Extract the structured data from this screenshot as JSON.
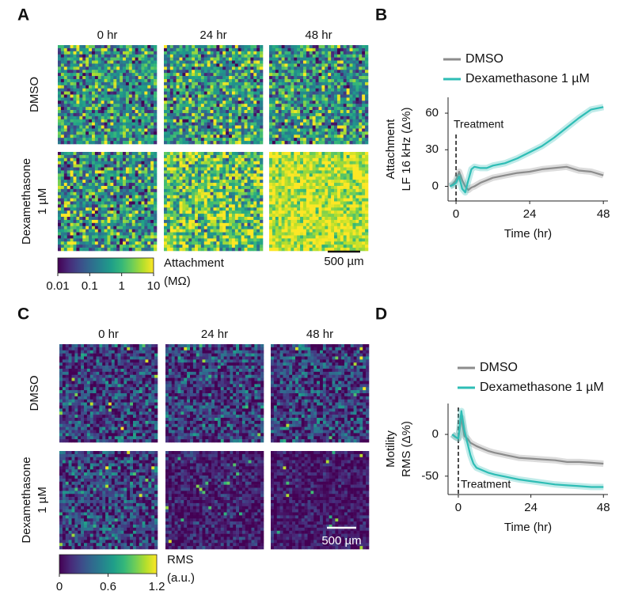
{
  "panel_labels": [
    "A",
    "B",
    "C",
    "D"
  ],
  "heatmaps": [
    {
      "column_titles": [
        "0 hr",
        "24 hr",
        "48 hr"
      ],
      "row_labels": [
        [
          "DMSO"
        ],
        [
          "Dexamethasone",
          "1 µM"
        ]
      ],
      "colorbar": {
        "label": [
          "Attachment",
          "(MΩ)"
        ],
        "scale": "log",
        "lim": [
          0.01,
          10
        ],
        "ticks": [
          0.01,
          0.1,
          1,
          10
        ]
      },
      "scale_bar": "500 µm"
    },
    {
      "column_titles": [
        "0 hr",
        "24 hr",
        "48 hr"
      ],
      "row_labels": [
        [
          "DMSO"
        ],
        [
          "Dexamethasone",
          "1 µM"
        ]
      ],
      "colorbar": {
        "label": [
          "RMS",
          "(a.u.)"
        ],
        "scale": "linear",
        "lim": [
          0,
          1.2
        ],
        "ticks": [
          0,
          0.6,
          1.2
        ]
      },
      "scale_bar": "500 µm"
    }
  ],
  "chart_data": [
    {
      "type": "line",
      "xlabel": "Time (hr)",
      "ylabel": [
        "Attachment",
        "LF 16 kHz (Δ%)"
      ],
      "annotation": "Treatment",
      "x": [
        -2,
        -1,
        0,
        1,
        2,
        3,
        4,
        5,
        6,
        8,
        10,
        12,
        16,
        20,
        24,
        28,
        32,
        36,
        40,
        44,
        48
      ],
      "series": [
        {
          "name": "DMSO",
          "color": "#8c8c8c",
          "values": [
            0,
            2,
            5,
            12,
            5,
            0,
            -3,
            -1,
            0,
            3,
            5,
            7,
            9,
            11,
            12,
            14,
            15,
            16,
            13,
            12,
            9
          ]
        },
        {
          "name": "Dexamethasone 1 µM",
          "color": "#2ebdb5",
          "values": [
            0,
            1,
            3,
            8,
            -2,
            -5,
            5,
            14,
            16,
            15,
            15,
            17,
            19,
            23,
            28,
            33,
            40,
            48,
            56,
            63,
            65
          ]
        }
      ],
      "xlim": [
        -2.6,
        49.5
      ],
      "xticks": [
        0,
        24,
        48
      ],
      "ylim": [
        -12,
        73
      ],
      "yticks": [
        0,
        30,
        60
      ]
    },
    {
      "type": "line",
      "xlabel": "Time (hr)",
      "ylabel": [
        "Motility",
        "RMS (Δ%)"
      ],
      "annotation": "Treatment",
      "x": [
        -2,
        -1,
        0,
        1,
        2,
        3,
        4,
        5,
        6,
        8,
        10,
        12,
        16,
        20,
        24,
        28,
        32,
        36,
        40,
        44,
        48
      ],
      "series": [
        {
          "name": "DMSO",
          "color": "#8c8c8c",
          "values": [
            0,
            -3,
            -5,
            20,
            -2,
            -5,
            -10,
            -12,
            -14,
            -17,
            -20,
            -22,
            -25,
            -28,
            -29,
            -30,
            -31,
            -33,
            -33,
            -34,
            -35
          ]
        },
        {
          "name": "Dexamethasone 1 µM",
          "color": "#2ebdb5",
          "values": [
            0,
            -3,
            -5,
            28,
            5,
            -10,
            -25,
            -35,
            -40,
            -43,
            -46,
            -48,
            -51,
            -54,
            -56,
            -58,
            -60,
            -61,
            -62,
            -63,
            -63
          ]
        }
      ],
      "xlim": [
        -3.4,
        49.5
      ],
      "xticks": [
        0,
        24,
        48
      ],
      "ylim": [
        -72,
        37
      ],
      "yticks": [
        -50,
        0
      ]
    }
  ]
}
